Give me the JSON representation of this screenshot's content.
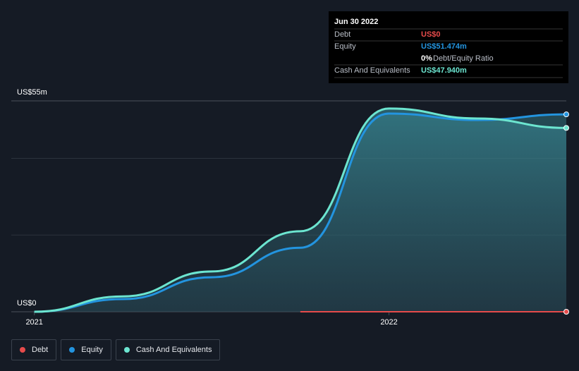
{
  "chart_data": {
    "type": "area",
    "x": [
      2021.0,
      2021.25,
      2021.5,
      2021.75,
      2022.0,
      2022.25,
      2022.5
    ],
    "xlim": [
      2020.935,
      2022.5
    ],
    "xticks": [
      2021,
      2022
    ],
    "ylim": [
      0,
      55
    ],
    "yticks": [
      {
        "value": 0,
        "label": "US$0"
      },
      {
        "value": 55,
        "label": "US$55m"
      }
    ],
    "gridlines": [
      20,
      40
    ],
    "series": [
      {
        "name": "Debt",
        "color": "#e64b4b",
        "values": [
          null,
          null,
          null,
          0,
          0,
          0,
          0
        ]
      },
      {
        "name": "Equity",
        "color": "#2394df",
        "values": [
          0,
          3.3,
          9,
          16.7,
          51.7,
          50,
          51.474
        ]
      },
      {
        "name": "Cash And Equivalents",
        "color": "#6ce5d0",
        "values": [
          0,
          4,
          10.5,
          21,
          53,
          50.4,
          47.94
        ]
      }
    ]
  },
  "tooltip": {
    "date": "Jun 30 2022",
    "rows": [
      {
        "label": "Debt",
        "value": "US$0"
      },
      {
        "label": "Equity",
        "value": "US$51.474m"
      }
    ],
    "ratio": {
      "value": "0%",
      "label": "Debt/Equity Ratio"
    },
    "cash": {
      "label": "Cash And Equivalents",
      "value": "US$47.940m"
    }
  }
}
